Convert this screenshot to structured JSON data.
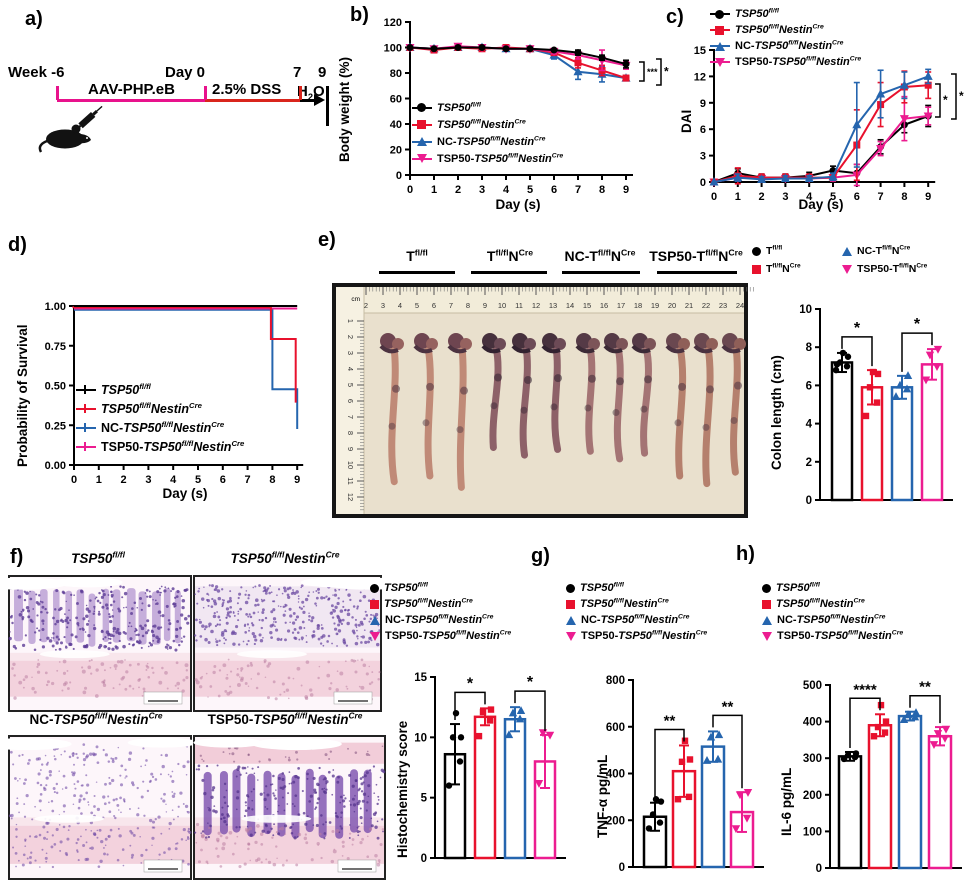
{
  "panels": {
    "a": "a)",
    "b": "b)",
    "c": "c)",
    "d": "d)",
    "e": "e)",
    "f": "f)",
    "g": "g)",
    "h": "h)"
  },
  "colors": {
    "black": "#000000",
    "red": "#e8112d",
    "blue": "#2565ae",
    "pink": "#ec1c90",
    "aav": "#e8128c",
    "dss": "#d9251c",
    "photo_bg": "#e9e0cd"
  },
  "timeline": {
    "week": "Week -6",
    "aav": "AAV-PHP.eB",
    "day0": "Day 0",
    "dss": "2.5% DSS",
    "day7": "7",
    "water": [
      {
        "t": "H"
      },
      {
        "t": "2",
        "b": 1
      },
      {
        "t": "O"
      }
    ],
    "day9": "9"
  },
  "legend_full": [
    [
      {
        "t": "TSP50",
        "i": 1
      },
      {
        "t": "fl/fl",
        "i": 1,
        "p": 1
      }
    ],
    [
      {
        "t": "TSP50",
        "i": 1
      },
      {
        "t": "fl/fl",
        "i": 1,
        "p": 1
      },
      {
        "t": "Nestin",
        "i": 1
      },
      {
        "t": "Cre",
        "i": 1,
        "p": 1
      }
    ],
    [
      {
        "t": "NC-"
      },
      {
        "t": "TSP50",
        "i": 1
      },
      {
        "t": "fl/fl",
        "i": 1,
        "p": 1
      },
      {
        "t": "Nestin",
        "i": 1
      },
      {
        "t": "Cre",
        "i": 1,
        "p": 1
      }
    ],
    [
      {
        "t": "TSP50-"
      },
      {
        "t": "TSP50",
        "i": 1
      },
      {
        "t": "fl/fl",
        "i": 1,
        "p": 1
      },
      {
        "t": "Nestin",
        "i": 1
      },
      {
        "t": "Cre",
        "i": 1,
        "p": 1
      }
    ]
  ],
  "legend_short": [
    [
      {
        "t": "T"
      },
      {
        "t": "fl/fl",
        "p": 1
      }
    ],
    [
      {
        "t": "T"
      },
      {
        "t": "fl/fl",
        "p": 1
      },
      {
        "t": "N"
      },
      {
        "t": "Cre",
        "p": 1
      }
    ],
    [
      {
        "t": "NC-T"
      },
      {
        "t": "fl/fl",
        "p": 1
      },
      {
        "t": "N"
      },
      {
        "t": "Cre",
        "p": 1
      }
    ],
    [
      {
        "t": "TSP50-T"
      },
      {
        "t": "fl/fl",
        "p": 1
      },
      {
        "t": "N"
      },
      {
        "t": "Cre",
        "p": 1
      }
    ]
  ],
  "group_names": [
    "TSP50fl/fl",
    "TSP50fl/flNestinCre",
    "NC-TSP50fl/flNestinCre",
    "TSP50-TSP50fl/flNestinCre"
  ],
  "photo": {
    "unit": "cm",
    "h_first": 2,
    "h_last": 24,
    "v_first": 1,
    "v_last": 12,
    "lengths_cm": [
      [
        7.3,
        7.0,
        7.6
      ],
      [
        5.5,
        5.9,
        5.6
      ],
      [
        5.7,
        6.1,
        5.8
      ],
      [
        7.0,
        7.4,
        6.8
      ]
    ]
  },
  "chart_data": [
    {
      "id": "body_weight",
      "type": "line",
      "title": "",
      "xlabel": "Day (s)",
      "ylabel": "Body weight (%)",
      "x": [
        0,
        1,
        2,
        3,
        4,
        5,
        6,
        7,
        8,
        9
      ],
      "ylim": [
        0,
        120
      ],
      "yticks": [
        0,
        20,
        40,
        60,
        80,
        100,
        120
      ],
      "legend_position": "inside-lower-left",
      "series": [
        {
          "name": "TSP50fl/fl",
          "color": "black",
          "marker": "circle",
          "values": [
            100,
            99,
            100,
            100,
            99,
            99,
            98,
            96,
            92,
            87
          ],
          "err": [
            1,
            1,
            1,
            1,
            1,
            1,
            1,
            2,
            2,
            3
          ]
        },
        {
          "name": "TSP50fl/flNestinCre",
          "color": "red",
          "marker": "square",
          "values": [
            100,
            98,
            100,
            99,
            100,
            99,
            96,
            88,
            82,
            76
          ],
          "err": [
            1,
            1,
            1,
            1,
            1,
            1,
            2,
            4,
            4,
            2
          ]
        },
        {
          "name": "NC-TSP50fl/flNestinCre",
          "color": "blue",
          "marker": "triangle",
          "values": [
            100,
            99,
            100,
            100,
            99,
            99,
            94,
            81,
            79,
            76
          ],
          "err": [
            1,
            1,
            1,
            1,
            1,
            1,
            3,
            6,
            6,
            2
          ]
        },
        {
          "name": "TSP50-TSP50fl/flNestinCre",
          "color": "pink",
          "marker": "triangle-down",
          "values": [
            100,
            99,
            101,
            100,
            99,
            99,
            97,
            94,
            90,
            86
          ],
          "err": [
            1,
            1,
            1,
            1,
            1,
            1,
            2,
            3,
            8,
            3
          ]
        }
      ],
      "sig": [
        {
          "label": "***"
        },
        {
          "label": "*"
        }
      ]
    },
    {
      "id": "dai",
      "type": "line",
      "title": "",
      "xlabel": "Day (s)",
      "ylabel": "DAI",
      "x": [
        0,
        1,
        2,
        3,
        4,
        5,
        6,
        7,
        8,
        9
      ],
      "ylim": [
        0,
        15
      ],
      "yticks": [
        0,
        3,
        6,
        9,
        12,
        15
      ],
      "legend_position": "top",
      "series": [
        {
          "name": "TSP50fl/fl",
          "color": "black",
          "marker": "circle",
          "values": [
            0,
            1.0,
            0.5,
            0.5,
            0.7,
            1.3,
            1.0,
            4.0,
            6.5,
            7.5
          ],
          "err": [
            0,
            0.5,
            0.4,
            0.4,
            0.4,
            0.5,
            1.0,
            0.8,
            0.9,
            1.2
          ]
        },
        {
          "name": "TSP50fl/flNestinCre",
          "color": "red",
          "marker": "square",
          "values": [
            0,
            0.7,
            0.5,
            0.5,
            0.5,
            0.5,
            4.2,
            8.8,
            10.8,
            11.0
          ],
          "err": [
            0,
            0.9,
            0.4,
            0.4,
            0.4,
            0.3,
            4.0,
            2.5,
            1.8,
            1.5
          ]
        },
        {
          "name": "NC-TSP50fl/flNestinCre",
          "color": "blue",
          "marker": "triangle",
          "values": [
            0,
            0.5,
            0.3,
            0.4,
            0.4,
            0.6,
            6.5,
            10.0,
            11.0,
            12.0
          ],
          "err": [
            0,
            0.4,
            0.3,
            0.3,
            0.3,
            0.4,
            4.8,
            2.7,
            1.5,
            0.8
          ]
        },
        {
          "name": "TSP50-TSP50fl/flNestinCre",
          "color": "pink",
          "marker": "triangle-down",
          "values": [
            0,
            0.5,
            0.4,
            0.4,
            0.4,
            0.5,
            0.8,
            3.8,
            7.2,
            7.5
          ],
          "err": [
            0,
            0.4,
            0.3,
            0.3,
            0.3,
            0.4,
            1.2,
            0.8,
            2.5,
            1.0
          ]
        }
      ],
      "sig": [
        {
          "label": "*"
        },
        {
          "label": "*"
        }
      ]
    },
    {
      "id": "survival",
      "type": "line",
      "title": "",
      "xlabel": "Day (s)",
      "ylabel": "Probability of Survival",
      "x": [
        0,
        1,
        2,
        3,
        4,
        5,
        6,
        7,
        8,
        9
      ],
      "ylim": [
        0,
        1
      ],
      "yticks": [
        0,
        0.25,
        0.5,
        0.75,
        1
      ],
      "ytick_labels": [
        "0.00",
        "0.25",
        "0.50",
        "0.75",
        "1.00"
      ],
      "legend_position": "inside-lower-left",
      "series": [
        {
          "name": "TSP50fl/fl",
          "color": "black",
          "steps": [
            [
              0,
              1
            ],
            [
              9,
              1
            ]
          ]
        },
        {
          "name": "TSP50fl/flNestinCre",
          "color": "red",
          "steps": [
            [
              0,
              1
            ],
            [
              8,
              1
            ],
            [
              8,
              0.8
            ],
            [
              9,
              0.8
            ],
            [
              9,
              0.4
            ]
          ]
        },
        {
          "name": "NC-TSP50fl/flNestinCre",
          "color": "blue",
          "steps": [
            [
              0,
              1
            ],
            [
              8,
              1
            ],
            [
              8,
              0.5
            ],
            [
              9,
              0.5
            ],
            [
              9,
              0.25
            ]
          ]
        },
        {
          "name": "TSP50-TSP50fl/flNestinCre",
          "color": "pink",
          "steps": [
            [
              0,
              1
            ],
            [
              9,
              1
            ]
          ]
        }
      ]
    },
    {
      "id": "colon_length",
      "type": "bar",
      "title": "",
      "xlabel": "",
      "ylabel": "Colon length (cm)",
      "categories": [
        "TSP50fl/fl",
        "TSP50fl/flNestinCre",
        "NC-TSP50fl/flNestinCre",
        "TSP50-TSP50fl/flNestinCre"
      ],
      "ylim": [
        0,
        10
      ],
      "yticks": [
        0,
        2,
        4,
        6,
        8,
        10
      ],
      "values": [
        7.2,
        5.9,
        5.9,
        7.1
      ],
      "err": [
        0.5,
        0.9,
        0.6,
        0.8
      ],
      "points": [
        [
          6.8,
          7.0,
          7.2,
          7.5,
          7.7,
          7.1
        ],
        [
          4.4,
          5.1,
          5.9,
          6.6,
          6.7
        ],
        [
          5.4,
          5.8,
          6.0,
          6.5
        ],
        [
          6.3,
          7.0,
          7.6,
          7.9
        ]
      ],
      "sig": [
        {
          "pair": [
            0,
            1
          ],
          "label": "*"
        },
        {
          "pair": [
            2,
            3
          ],
          "label": "*"
        }
      ]
    },
    {
      "id": "histochemistry_score",
      "type": "bar",
      "title": "",
      "xlabel": "",
      "ylabel": "Histochemistry score",
      "categories": [
        "TSP50fl/fl",
        "TSP50fl/flNestinCre",
        "NC-TSP50fl/flNestinCre",
        "TSP50-TSP50fl/flNestinCre"
      ],
      "ylim": [
        0,
        15
      ],
      "yticks": [
        0,
        5,
        10,
        15
      ],
      "values": [
        8.6,
        11.7,
        11.5,
        8.0
      ],
      "err": [
        2.5,
        0.7,
        1.0,
        2.2
      ],
      "points": [
        [
          6.0,
          8.0,
          10.0,
          10.0,
          12.0
        ],
        [
          10.1,
          11.4,
          12.1,
          12.3
        ],
        [
          10.2,
          11.5,
          12.0,
          12.2
        ],
        [
          6.2,
          10.2,
          10.4
        ]
      ],
      "sig": [
        {
          "pair": [
            0,
            1
          ],
          "label": "*"
        },
        {
          "pair": [
            2,
            3
          ],
          "label": "*"
        }
      ]
    },
    {
      "id": "tnf_alpha",
      "type": "bar",
      "title": "",
      "xlabel": "",
      "ylabel": "TNF-α pg/mL",
      "categories": [
        "TSP50fl/fl",
        "TSP50fl/flNestinCre",
        "NC-TSP50fl/flNestinCre",
        "TSP50-TSP50fl/flNestinCre"
      ],
      "ylim": [
        0,
        800
      ],
      "yticks": [
        0,
        200,
        400,
        600,
        800
      ],
      "values": [
        215,
        410,
        515,
        235
      ],
      "err": [
        60,
        110,
        65,
        85
      ],
      "points": [
        [
          165,
          190,
          225,
          280,
          290
        ],
        [
          290,
          300,
          450,
          460,
          540
        ],
        [
          455,
          460,
          555,
          565
        ],
        [
          165,
          210,
          310,
          320
        ]
      ],
      "sig": [
        {
          "pair": [
            0,
            1
          ],
          "label": "**"
        },
        {
          "pair": [
            2,
            3
          ],
          "label": "**"
        }
      ]
    },
    {
      "id": "il6",
      "type": "bar",
      "title": "",
      "xlabel": "",
      "ylabel": "IL-6 pg/mL",
      "categories": [
        "TSP50fl/fl",
        "TSP50fl/flNestinCre",
        "NC-TSP50fl/flNestinCre",
        "TSP50-TSP50fl/flNestinCre"
      ],
      "ylim": [
        0,
        500
      ],
      "yticks": [
        0,
        100,
        200,
        300,
        400,
        500
      ],
      "values": [
        305,
        390,
        415,
        360
      ],
      "err": [
        12,
        30,
        12,
        25
      ],
      "points": [
        [
          298,
          303,
          308,
          313
        ],
        [
          360,
          370,
          385,
          400,
          445
        ],
        [
          405,
          412,
          418,
          424
        ],
        [
          338,
          355,
          368,
          380
        ]
      ],
      "sig": [
        {
          "pair": [
            0,
            1
          ],
          "label": "****"
        },
        {
          "pair": [
            2,
            3
          ],
          "label": "**"
        }
      ]
    }
  ]
}
